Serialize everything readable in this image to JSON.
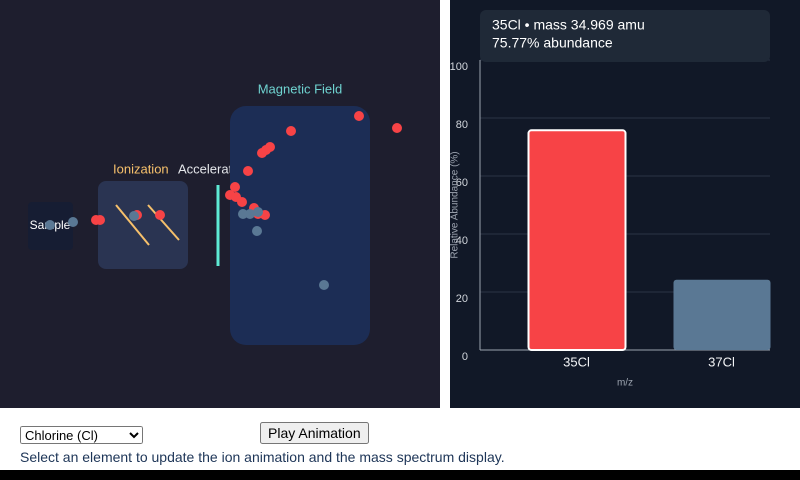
{
  "diagram": {
    "sample": "Sample",
    "ionization": "Ionization",
    "acceleration": "Acceleration",
    "magnetic_field": "Magnetic Field"
  },
  "chart_data": {
    "type": "bar",
    "categories": [
      "35Cl",
      "37Cl"
    ],
    "values": [
      75.77,
      24.23
    ],
    "colors": [
      "#f74346",
      "#5a7894"
    ],
    "ylim": [
      0,
      100
    ],
    "yticks": [
      0,
      20,
      40,
      60,
      80,
      100
    ],
    "grid": true,
    "x_label": "m/z",
    "y_label": "Relative Abundance (%)",
    "tooltip": [
      "35Cl • mass 34.969 amu",
      "75.77% abundance"
    ]
  },
  "controls": {
    "element_options": [
      "Chlorine (Cl)"
    ],
    "button": "Play Animation",
    "instruction": "Select an element to update the ion animation and the mass spectrum display."
  }
}
